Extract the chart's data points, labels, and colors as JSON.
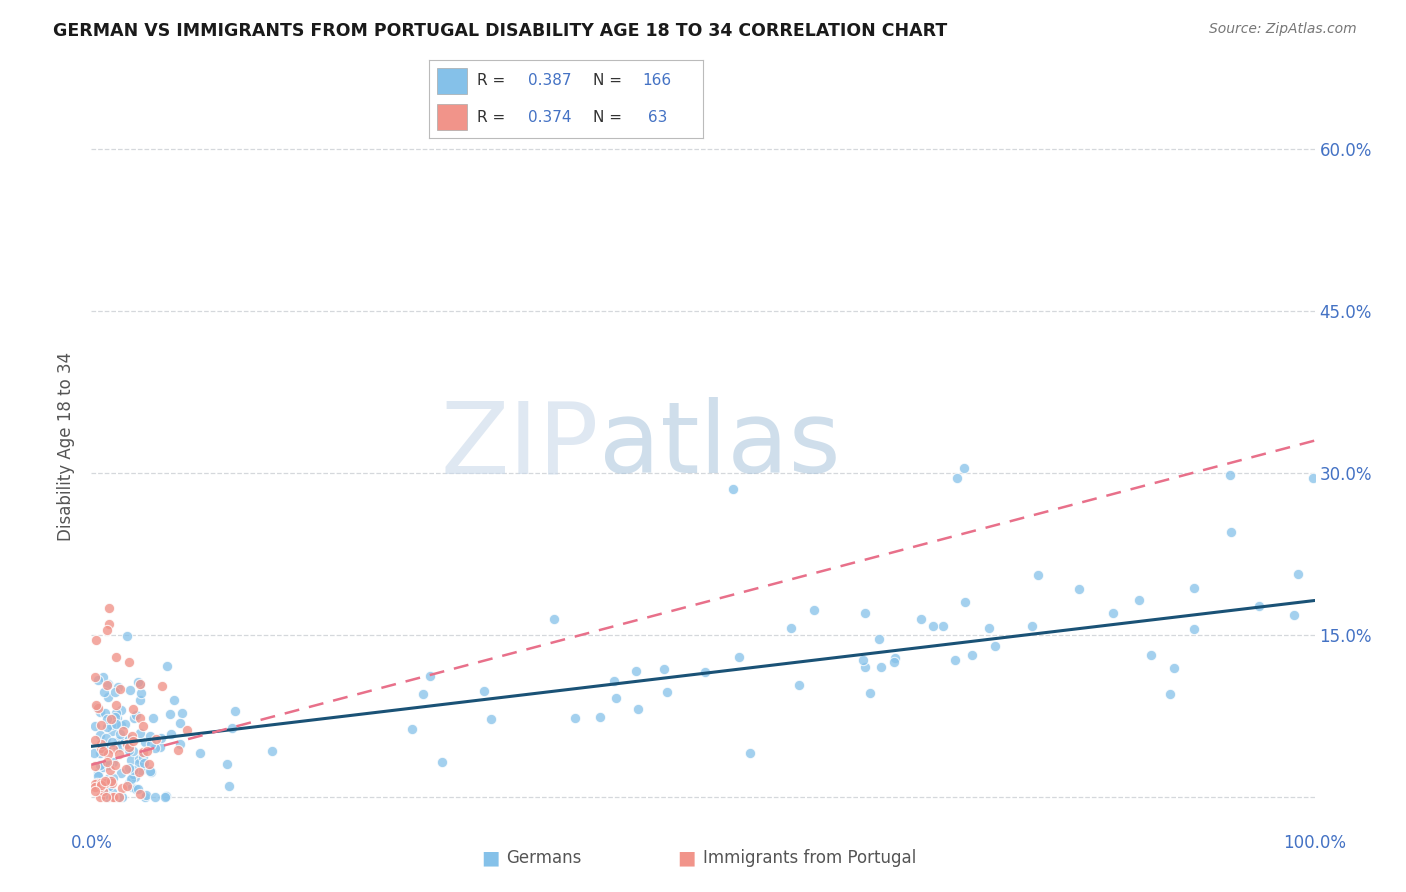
{
  "title": "GERMAN VS IMMIGRANTS FROM PORTUGAL DISABILITY AGE 18 TO 34 CORRELATION CHART",
  "source": "Source: ZipAtlas.com",
  "ylabel": "Disability Age 18 to 34",
  "xlim": [
    0,
    1.0
  ],
  "ylim": [
    -0.03,
    0.68
  ],
  "ytick_positions": [
    0.0,
    0.15,
    0.3,
    0.45,
    0.6
  ],
  "yticklabels_right": [
    "",
    "15.0%",
    "30.0%",
    "45.0%",
    "60.0%"
  ],
  "xtick_positions": [
    0.0,
    0.25,
    0.5,
    0.75,
    1.0
  ],
  "xticklabels": [
    "0.0%",
    "",
    "",
    "",
    "100.0%"
  ],
  "german_color": "#85c1e9",
  "portugal_color": "#f1948a",
  "german_line_color": "#1a5276",
  "portugal_line_color": "#e8708a",
  "german_line_slope": 0.135,
  "german_line_intercept": 0.047,
  "portugal_line_slope": 0.3,
  "portugal_line_intercept": 0.03,
  "legend_R1": "0.387",
  "legend_N1": "166",
  "legend_R2": "0.374",
  "legend_N2": " 63",
  "watermark_ZIP": "ZIP",
  "watermark_atlas": "atlas",
  "background_color": "#ffffff",
  "grid_color": "#d5d8dc",
  "label_color": "#4472c4",
  "tick_color": "#555555",
  "bottom_label1": "Germans",
  "bottom_label2": "Immigrants from Portugal"
}
